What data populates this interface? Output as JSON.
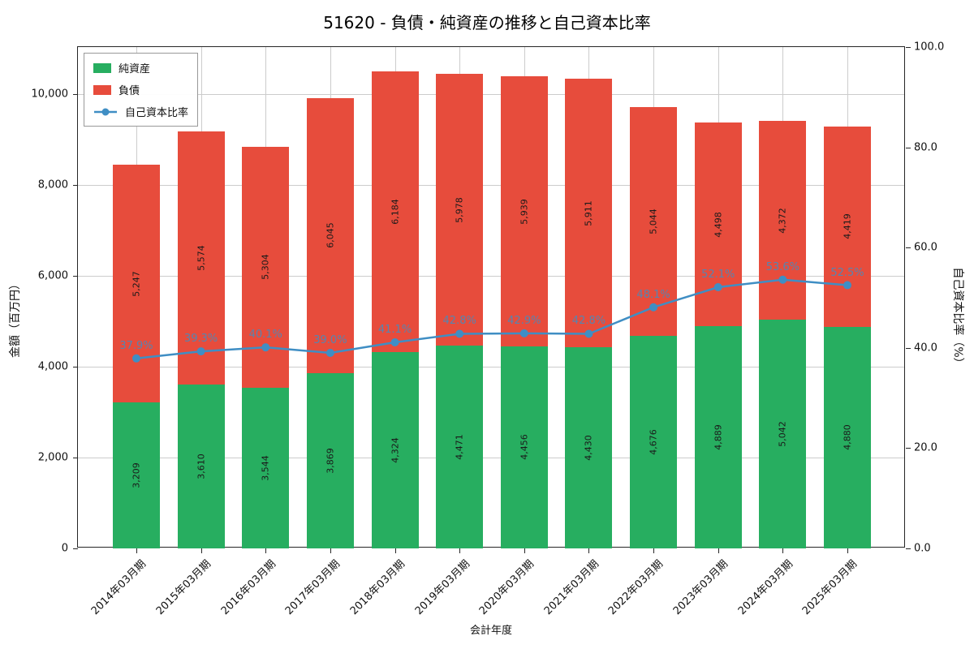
{
  "chart_data": {
    "type": "bar",
    "subtype": "stacked-bar-with-line",
    "title": "51620 - 負債・純資産の推移と自己資本比率",
    "xlabel": "会計年度",
    "ylabel_left": "金額（百万円）",
    "ylabel_right": "自己資本比率（%）",
    "categories": [
      "2014年03月期",
      "2015年03月期",
      "2016年03月期",
      "2017年03月期",
      "2018年03月期",
      "2019年03月期",
      "2020年03月期",
      "2021年03月期",
      "2022年03月期",
      "2023年03月期",
      "2024年03月期",
      "2025年03月期"
    ],
    "series": [
      {
        "name": "純資産",
        "type": "bar",
        "stack": true,
        "color": "#27ae60",
        "values": [
          3209,
          3610,
          3544,
          3869,
          4324,
          4471,
          4456,
          4430,
          4676,
          4889,
          5042,
          4880
        ]
      },
      {
        "name": "負債",
        "type": "bar",
        "stack": true,
        "color": "#e74c3c",
        "values": [
          5247,
          5574,
          5304,
          6045,
          6184,
          5978,
          5939,
          5911,
          5044,
          4498,
          4372,
          4419
        ]
      },
      {
        "name": "自己資本比率",
        "type": "line",
        "color": "#3f8ec4",
        "values": [
          37.9,
          39.3,
          40.1,
          39.0,
          41.1,
          42.8,
          42.9,
          42.8,
          48.1,
          52.1,
          53.6,
          52.5
        ]
      }
    ],
    "ylim_left": [
      0,
      11045
    ],
    "ylim_right": [
      0,
      100
    ],
    "yticks_left": [
      0,
      2000,
      4000,
      6000,
      8000,
      10000
    ],
    "yticks_right": [
      0,
      20,
      40,
      60,
      80,
      100
    ],
    "grid": true,
    "legend_position": "upper-left"
  }
}
